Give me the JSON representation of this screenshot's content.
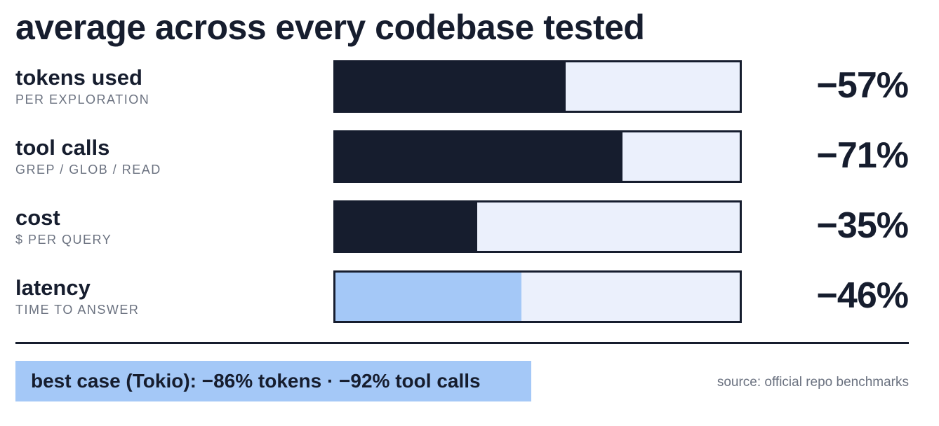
{
  "title": "average across every codebase tested",
  "chart_data": {
    "type": "bar",
    "orientation": "horizontal",
    "rows": [
      {
        "label": "tokens used",
        "sublabel": "PER EXPLORATION",
        "value_text": "−57%",
        "fill_fraction": 0.57,
        "color": "#161d2e"
      },
      {
        "label": "tool calls",
        "sublabel": "GREP / GLOB / READ",
        "value_text": "−71%",
        "fill_fraction": 0.71,
        "color": "#161d2e"
      },
      {
        "label": "cost",
        "sublabel": "$ PER QUERY",
        "value_text": "−35%",
        "fill_fraction": 0.35,
        "color": "#161d2e"
      },
      {
        "label": "latency",
        "sublabel": "TIME TO ANSWER",
        "value_text": "−46%",
        "fill_fraction": 0.46,
        "color": "#a4c8f7"
      }
    ],
    "track_color": "#ebf0fc",
    "grid": false
  },
  "callout": "best case (Tokio): −86% tokens · −92% tool calls",
  "source": "source: official repo benchmarks",
  "colors": {
    "ink": "#161d2e",
    "accent": "#a4c8f7",
    "track": "#ebf0fc",
    "muted": "#6b7280"
  }
}
